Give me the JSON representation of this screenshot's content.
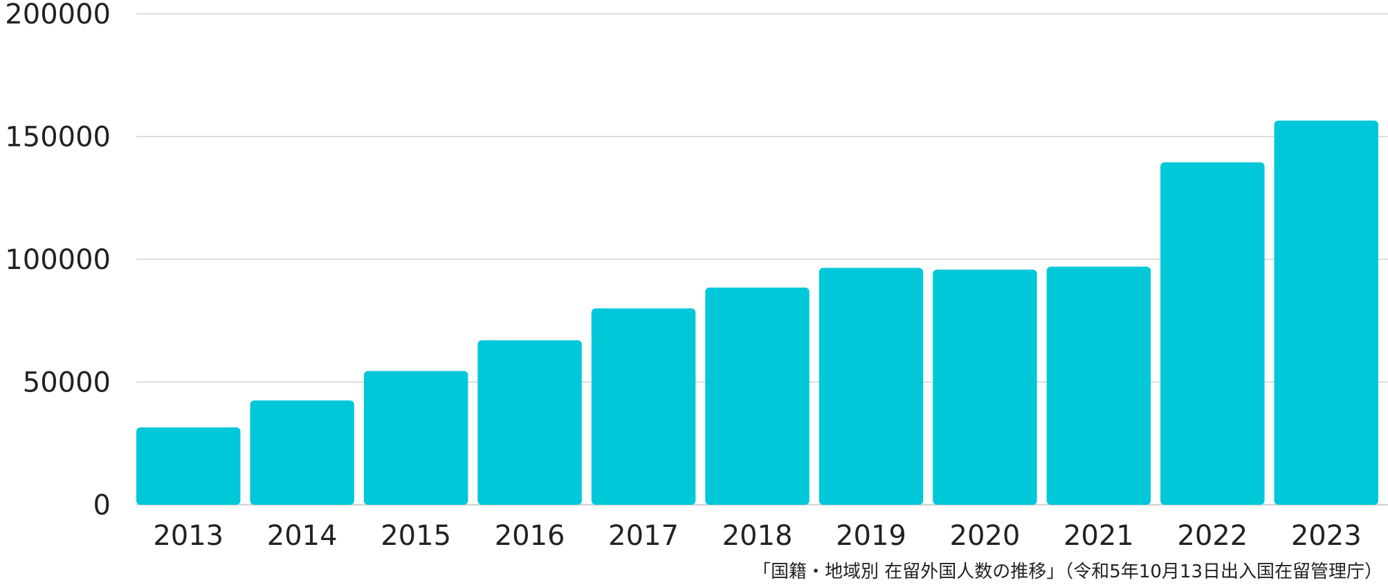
{
  "chart_data": {
    "type": "bar",
    "title": "",
    "xlabel": "",
    "ylabel": "",
    "categories": [
      "2013",
      "2014",
      "2015",
      "2016",
      "2017",
      "2018",
      "2019",
      "2020",
      "2021",
      "2022",
      "2023"
    ],
    "values": [
      31500,
      42500,
      54500,
      67000,
      80000,
      88500,
      96500,
      95800,
      97000,
      139500,
      156500
    ],
    "ylim": [
      0,
      200000
    ],
    "yticks": [
      "0",
      "50000",
      "100000",
      "150000",
      "200000"
    ],
    "grid": true,
    "colors": {
      "bar": "#00c8d9",
      "grid": "#d0d0d0",
      "axis": "#d0d0d0"
    }
  },
  "source": "「国籍・地域別 在留外国人数の推移」（令和5年10月13日出入国在留管理庁）"
}
